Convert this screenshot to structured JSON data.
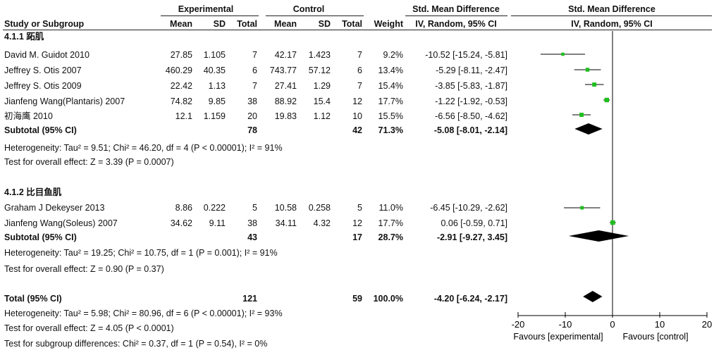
{
  "headers": {
    "group_experimental": "Experimental",
    "group_control": "Control",
    "group_smd": "Std. Mean Difference",
    "group_smd_plot": "Std. Mean Difference",
    "study": "Study or Subgroup",
    "mean": "Mean",
    "sd": "SD",
    "total": "Total",
    "c_mean": "Mean",
    "c_sd": "SD",
    "c_total": "Total",
    "weight": "Weight",
    "method": "IV, Random, 95% CI",
    "method_plot": "IV, Random, 95% CI"
  },
  "rows": [
    {
      "type": "group",
      "label": "4.1.1 跖肌"
    },
    {
      "type": "study",
      "name": "David M. Guidot 2010",
      "e_mean": "27.85",
      "e_sd": "1.105",
      "e_total": "7",
      "c_mean": "42.17",
      "c_sd": "1.423",
      "c_total": "7",
      "weight": "9.2%",
      "ci": "-10.52 [-15.24, -5.81]"
    },
    {
      "type": "study",
      "name": "Jeffrey S. Otis 2007",
      "e_mean": "460.29",
      "e_sd": "40.35",
      "e_total": "6",
      "c_mean": "743.77",
      "c_sd": "57.12",
      "c_total": "6",
      "weight": "13.4%",
      "ci": "-5.29 [-8.11, -2.47]"
    },
    {
      "type": "study",
      "name": "Jeffrey S. Otis 2009",
      "e_mean": "22.42",
      "e_sd": "1.13",
      "e_total": "7",
      "c_mean": "27.41",
      "c_sd": "1.29",
      "c_total": "7",
      "weight": "15.4%",
      "ci": "-3.85 [-5.83, -1.87]"
    },
    {
      "type": "study",
      "name": "Jianfeng Wang(Plantaris) 2007",
      "e_mean": "74.82",
      "e_sd": "9.85",
      "e_total": "38",
      "c_mean": "88.92",
      "c_sd": "15.4",
      "c_total": "12",
      "weight": "17.7%",
      "ci": "-1.22 [-1.92, -0.53]"
    },
    {
      "type": "study",
      "name": "初海鹰 2010",
      "e_mean": "12.1",
      "e_sd": "1.159",
      "e_total": "20",
      "c_mean": "19.83",
      "c_sd": "1.12",
      "c_total": "10",
      "weight": "15.5%",
      "ci": "-6.56 [-8.50, -4.62]"
    },
    {
      "type": "subtotal",
      "name": "Subtotal (95% CI)",
      "e_total": "78",
      "c_total": "42",
      "weight": "71.3%",
      "ci": "-5.08 [-8.01, -2.14]"
    },
    {
      "type": "note",
      "text": "Heterogeneity: Tau² = 9.51; Chi² = 46.20, df = 4 (P < 0.00001); I² = 91%"
    },
    {
      "type": "note",
      "text": "Test for overall effect: Z = 3.39 (P = 0.0007)"
    },
    {
      "type": "group",
      "label": "4.1.2 比目鱼肌"
    },
    {
      "type": "study",
      "name": "Graham J Dekeyser 2013",
      "e_mean": "8.86",
      "e_sd": "0.222",
      "e_total": "5",
      "c_mean": "10.58",
      "c_sd": "0.258",
      "c_total": "5",
      "weight": "11.0%",
      "ci": "-6.45 [-10.29, -2.62]"
    },
    {
      "type": "study",
      "name": "Jianfeng Wang(Soleus) 2007",
      "e_mean": "34.62",
      "e_sd": "9.11",
      "e_total": "38",
      "c_mean": "34.11",
      "c_sd": "4.32",
      "c_total": "12",
      "weight": "17.7%",
      "ci": "0.06 [-0.59, 0.71]"
    },
    {
      "type": "subtotal",
      "name": "Subtotal (95% CI)",
      "e_total": "43",
      "c_total": "17",
      "weight": "28.7%",
      "ci": "-2.91 [-9.27, 3.45]"
    },
    {
      "type": "note",
      "text": "Heterogeneity: Tau² = 19.25; Chi² = 10.75, df = 1 (P = 0.001); I² = 91%"
    },
    {
      "type": "note",
      "text": "Test for overall effect: Z = 0.90 (P = 0.37)"
    },
    {
      "type": "total",
      "name": "Total (95% CI)",
      "e_total": "121",
      "c_total": "59",
      "weight": "100.0%",
      "ci": "-4.20 [-6.24, -2.17]"
    },
    {
      "type": "note",
      "text": "Heterogeneity: Tau² = 5.98; Chi² = 80.96, df = 6 (P < 0.00001); I² = 93%"
    },
    {
      "type": "note",
      "text": "Test for overall effect: Z = 4.05 (P < 0.0001)"
    },
    {
      "type": "note",
      "text": "Test for subgroup differences: Chi² = 0.37, df = 1 (P = 0.54), I² = 0%"
    }
  ],
  "chart_data": {
    "type": "forest",
    "xlim": [
      -20,
      20
    ],
    "ticks": [
      -20,
      -10,
      0,
      10,
      20
    ],
    "tick_labels": [
      "-20",
      "-10",
      "0",
      "10",
      "20"
    ],
    "label_left": "Favours [experimental]",
    "label_right": "Favours [control]",
    "studies": [
      {
        "name": "David M. Guidot 2010",
        "est": -10.52,
        "lo": -15.24,
        "hi": -5.81,
        "weight": 9.2
      },
      {
        "name": "Jeffrey S. Otis 2007",
        "est": -5.29,
        "lo": -8.11,
        "hi": -2.47,
        "weight": 13.4
      },
      {
        "name": "Jeffrey S. Otis 2009",
        "est": -3.85,
        "lo": -5.83,
        "hi": -1.87,
        "weight": 15.4
      },
      {
        "name": "Jianfeng Wang(Plantaris) 2007",
        "est": -1.22,
        "lo": -1.92,
        "hi": -0.53,
        "weight": 17.7
      },
      {
        "name": "初海鹰 2010",
        "est": -6.56,
        "lo": -8.5,
        "hi": -4.62,
        "weight": 15.5
      },
      {
        "name": "Graham J Dekeyser 2013",
        "est": -6.45,
        "lo": -10.29,
        "hi": -2.62,
        "weight": 11.0
      },
      {
        "name": "Jianfeng Wang(Soleus) 2007",
        "est": 0.06,
        "lo": -0.59,
        "hi": 0.71,
        "weight": 17.7
      }
    ],
    "pooled": [
      {
        "name": "Subtotal 4.1.1",
        "est": -5.08,
        "lo": -8.01,
        "hi": -2.14
      },
      {
        "name": "Subtotal 4.1.2",
        "est": -2.91,
        "lo": -9.27,
        "hi": 3.45
      },
      {
        "name": "Total",
        "est": -4.2,
        "lo": -6.24,
        "hi": -2.17
      }
    ],
    "colors": {
      "point": "#1fbf1f",
      "line": "#000000"
    }
  }
}
